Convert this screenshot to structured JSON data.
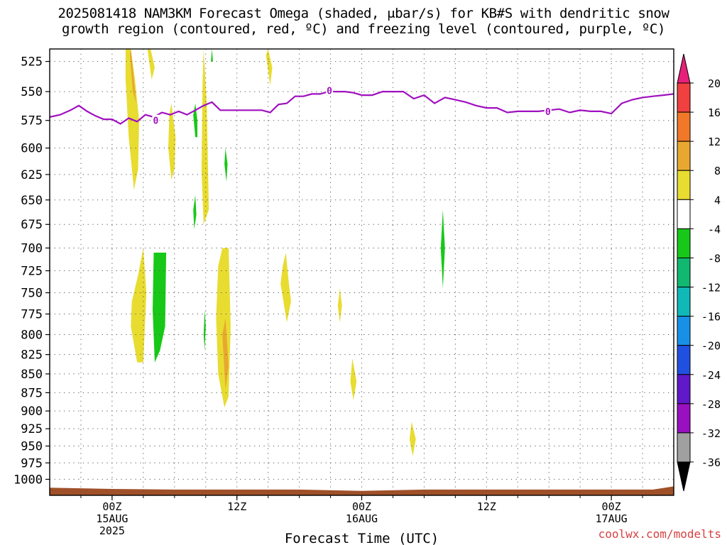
{
  "title": {
    "line1": "2025081418 NAM3KM Forecast Omega (shaded, μbar/s) for KB#S with dendritic snow",
    "line2": "growth region (contoured, red, ºC) and freezing level (contoured, purple, ºC)"
  },
  "watermark": "coolwx.com/modelts",
  "chart_data": {
    "type": "contour",
    "title": "2025081418 NAM3KM Forecast Omega (shaded, μbar/s) for KB#S with dendritic snow growth region (contoured, red, ºC) and freezing level (contoured, purple, ºC)",
    "xlabel": "Forecast Time (UTC)",
    "ylabel": "",
    "xunit": "hours after 2025-08-14 18Z",
    "xlim": [
      0,
      60
    ],
    "ylim": [
      1025,
      515
    ],
    "yscale": "log",
    "y_ticks": [
      525,
      550,
      575,
      600,
      625,
      650,
      675,
      700,
      725,
      750,
      775,
      800,
      825,
      850,
      875,
      900,
      925,
      950,
      975,
      1000
    ],
    "x_ticks": [
      {
        "x": 6,
        "lines": [
          "00Z",
          "15AUG",
          "2025"
        ]
      },
      {
        "x": 18,
        "lines": [
          "12Z"
        ]
      },
      {
        "x": 30,
        "lines": [
          "00Z",
          "16AUG"
        ]
      },
      {
        "x": 42,
        "lines": [
          "12Z"
        ]
      },
      {
        "x": 54,
        "lines": [
          "00Z",
          "17AUG"
        ]
      }
    ],
    "grid": true,
    "colorbar": {
      "levels": [
        "20",
        "16",
        "12",
        "8",
        "4",
        "-4",
        "-8",
        "-12",
        "-16",
        "-20",
        "-24",
        "-28",
        "-32",
        "-36"
      ],
      "colors": [
        "#e8207a",
        "#f04040",
        "#f07828",
        "#e8a830",
        "#e8dc30",
        "#ffffff",
        "#18c818",
        "#10b870",
        "#10b8b8",
        "#1890e8",
        "#2050e0",
        "#6018c8",
        "#9810c0",
        "#a0a0a0",
        "#000000"
      ]
    },
    "freezing_level": {
      "label": "0",
      "color": "#a010c0",
      "x": [
        0,
        1,
        2,
        2.8,
        3.6,
        4.4,
        5.2,
        6,
        6.8,
        7.6,
        8.4,
        9.2,
        10,
        10.8,
        11.6,
        12.4,
        13.2,
        14,
        14.8,
        15.6,
        16.4,
        17.2,
        18,
        18.8,
        19.6,
        20.4,
        21.2,
        22,
        22.8,
        23.6,
        24.4,
        25.2,
        26,
        26.8,
        27.6,
        28.4,
        29.2,
        30,
        31,
        32,
        33,
        34,
        35,
        36,
        37,
        38,
        39,
        40,
        41,
        42,
        43,
        44,
        45,
        46,
        47,
        48,
        49,
        50,
        51,
        52,
        53,
        54,
        55,
        56,
        57,
        58,
        59,
        60
      ],
      "y": [
        572,
        570,
        566,
        562,
        567,
        571,
        574,
        574,
        578,
        573,
        576,
        570,
        572,
        568,
        570,
        567,
        570,
        566,
        562,
        559,
        566,
        566,
        566,
        566,
        566,
        566,
        568,
        561,
        560,
        554,
        554,
        552,
        552,
        550,
        550,
        550,
        551,
        553,
        553,
        550,
        550,
        550,
        556,
        553,
        560,
        555,
        557,
        559,
        562,
        564,
        564,
        568,
        567,
        567,
        567,
        566,
        565,
        568,
        566,
        567,
        567,
        569,
        560,
        557,
        555,
        554,
        553,
        552
      ]
    },
    "omega_shaded": [
      {
        "label": "4",
        "color": "#e8dc30",
        "x": [
          7.8,
          8.2,
          8.6,
          8.5,
          8.1,
          7.6,
          7.3,
          7.3,
          7.6
        ],
        "y": [
          515,
          540,
          575,
          620,
          640,
          590,
          540,
          515,
          515
        ]
      },
      {
        "label": "8",
        "color": "#e8a830",
        "x": [
          7.8,
          8.1,
          8.3,
          8.0,
          7.7
        ],
        "y": [
          515,
          540,
          560,
          550,
          520
        ]
      },
      {
        "label": "4",
        "color": "#e8dc30",
        "x": [
          9.7,
          10.1,
          9.8,
          9.4
        ],
        "y": [
          515,
          530,
          540,
          515
        ]
      },
      {
        "label": "4",
        "color": "#e8dc30",
        "x": [
          11.7,
          12.1,
          12.0,
          11.7,
          11.4,
          11.5
        ],
        "y": [
          560,
          590,
          620,
          630,
          600,
          570
        ]
      },
      {
        "label": "4",
        "color": "#e8dc30",
        "x": [
          14.8,
          15.1,
          15.3,
          14.8,
          14.6,
          14.7
        ],
        "y": [
          515,
          560,
          660,
          675,
          620,
          540
        ]
      },
      {
        "label": "4",
        "color": "#e8dc30",
        "x": [
          21.0,
          21.4,
          21.2,
          20.8
        ],
        "y": [
          515,
          530,
          545,
          520
        ]
      },
      {
        "label": "-4",
        "color": "#18c818",
        "x": [
          14.0,
          14.2,
          14.2,
          14.0,
          13.8
        ],
        "y": [
          560,
          575,
          590,
          590,
          570
        ]
      },
      {
        "label": "-4",
        "color": "#18c818",
        "x": [
          16.9,
          17.1,
          17.0,
          16.8
        ],
        "y": [
          600,
          615,
          632,
          615
        ]
      },
      {
        "label": "-4",
        "color": "#18c818",
        "x": [
          15.6,
          15.7,
          15.5
        ],
        "y": [
          515,
          525,
          525
        ]
      },
      {
        "label": "-4",
        "color": "#18c818",
        "x": [
          14.0,
          14.1,
          13.9,
          13.8
        ],
        "y": [
          645,
          665,
          680,
          660
        ]
      },
      {
        "label": "4",
        "color": "#e8dc30",
        "x": [
          9.0,
          9.3,
          9.0,
          8.4,
          7.8,
          7.9,
          8.5
        ],
        "y": [
          700,
          750,
          835,
          835,
          790,
          760,
          730
        ]
      },
      {
        "label": "-4",
        "color": "#18c818",
        "x": [
          10.0,
          11.2,
          11.1,
          10.6,
          10.1,
          9.9
        ],
        "y": [
          705,
          705,
          790,
          820,
          835,
          770
        ]
      },
      {
        "label": "-4",
        "color": "#18c818",
        "x": [
          14.9,
          15.0,
          14.9,
          14.8
        ],
        "y": [
          770,
          790,
          820,
          800
        ]
      },
      {
        "label": "4",
        "color": "#e8dc30",
        "x": [
          16.6,
          17.2,
          17.4,
          17.2,
          16.8,
          16.2,
          16.0,
          16.2
        ],
        "y": [
          700,
          700,
          790,
          880,
          895,
          850,
          780,
          720
        ]
      },
      {
        "label": "8",
        "color": "#e8a830",
        "x": [
          16.9,
          17.2,
          16.9,
          16.6
        ],
        "y": [
          780,
          840,
          870,
          800
        ]
      },
      {
        "label": "4",
        "color": "#e8dc30",
        "x": [
          22.7,
          23.0,
          23.2,
          22.8,
          22.2,
          22.4
        ],
        "y": [
          705,
          740,
          760,
          785,
          740,
          720
        ]
      },
      {
        "label": "4",
        "color": "#e8dc30",
        "x": [
          27.9,
          28.1,
          27.9,
          27.7
        ],
        "y": [
          745,
          765,
          785,
          765
        ]
      },
      {
        "label": "4",
        "color": "#e8dc30",
        "x": [
          29.1,
          29.5,
          29.2,
          28.9
        ],
        "y": [
          830,
          860,
          885,
          860
        ]
      },
      {
        "label": "4",
        "color": "#e8dc30",
        "x": [
          34.8,
          35.2,
          34.9,
          34.6
        ],
        "y": [
          915,
          940,
          965,
          940
        ]
      },
      {
        "label": "-4",
        "color": "#18c818",
        "x": [
          37.8,
          38.0,
          37.8,
          37.6
        ],
        "y": [
          660,
          700,
          745,
          700
        ]
      }
    ],
    "ground": {
      "color": "#a05028",
      "x": [
        0,
        6,
        12,
        18,
        24,
        30,
        36,
        42,
        48,
        54,
        58,
        60
      ],
      "y": [
        1013,
        1015,
        1016,
        1016,
        1016,
        1018,
        1016,
        1016,
        1016,
        1016,
        1016,
        1011
      ]
    }
  }
}
